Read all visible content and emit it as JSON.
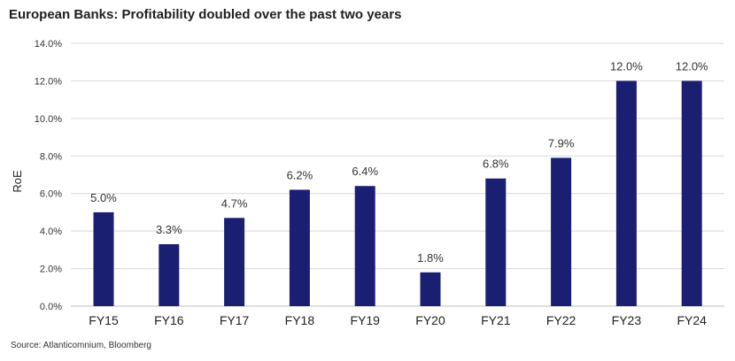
{
  "title": "European Banks: Profitability doubled over the past two years",
  "source": "Source: Atlanticomnium, Bloomberg",
  "colors": {
    "bar": "#1b1f71"
  },
  "chart_data": {
    "type": "bar",
    "title": "European Banks: Profitability doubled over the past two years",
    "xlabel": "",
    "ylabel": "RoE",
    "categories": [
      "FY15",
      "FY16",
      "FY17",
      "FY18",
      "FY19",
      "FY20",
      "FY21",
      "FY22",
      "FY23",
      "FY24"
    ],
    "values": [
      5.0,
      3.3,
      4.7,
      6.2,
      6.4,
      1.8,
      6.8,
      7.9,
      12.0,
      12.0
    ],
    "data_labels": [
      "5.0%",
      "3.3%",
      "4.7%",
      "6.2%",
      "6.4%",
      "1.8%",
      "6.8%",
      "7.9%",
      "12.0%",
      "12.0%"
    ],
    "ylim": [
      0,
      14
    ],
    "yticks": [
      0,
      2,
      4,
      6,
      8,
      10,
      12,
      14
    ],
    "ytick_labels": [
      "0.0%",
      "2.0%",
      "4.0%",
      "6.0%",
      "8.0%",
      "10.0%",
      "12.0%",
      "14.0%"
    ],
    "grid": true,
    "legend": "none"
  }
}
